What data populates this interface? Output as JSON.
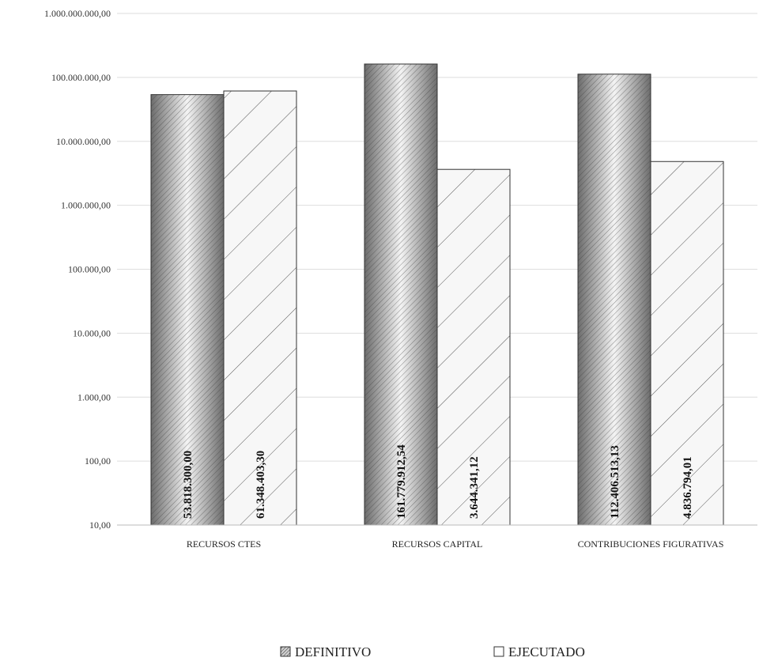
{
  "chart_data": {
    "type": "bar",
    "scale": "log",
    "ylim": [
      10,
      1000000000
    ],
    "yticks": [
      {
        "value": 10,
        "label": "10,00"
      },
      {
        "value": 100,
        "label": "100,00"
      },
      {
        "value": 1000,
        "label": "1.000,00"
      },
      {
        "value": 10000,
        "label": "10.000,00"
      },
      {
        "value": 100000,
        "label": "100.000,00"
      },
      {
        "value": 1000000,
        "label": "1.000.000,00"
      },
      {
        "value": 10000000,
        "label": "10.000.000,00"
      },
      {
        "value": 100000000,
        "label": "100.000.000,00"
      },
      {
        "value": 1000000000,
        "label": "1.000.000.000,00"
      }
    ],
    "categories": [
      "RECURSOS CTES",
      "RECURSOS CAPITAL",
      "CONTRIBUCIONES FIGURATIVAS"
    ],
    "series": [
      {
        "name": "DEFINITIVO",
        "values": [
          53818300.0,
          161779912.54,
          112406513.13
        ],
        "labels": [
          "53.818.300,00",
          "161.779.912,54",
          "112.406.513,13"
        ]
      },
      {
        "name": "EJECUTADO",
        "values": [
          61348403.3,
          3644341.12,
          4836794.01
        ],
        "labels": [
          "61.348.403,30",
          "3.644.341,12",
          "4.836.794,01"
        ]
      }
    ],
    "grid": true,
    "legend_position": "bottom"
  }
}
